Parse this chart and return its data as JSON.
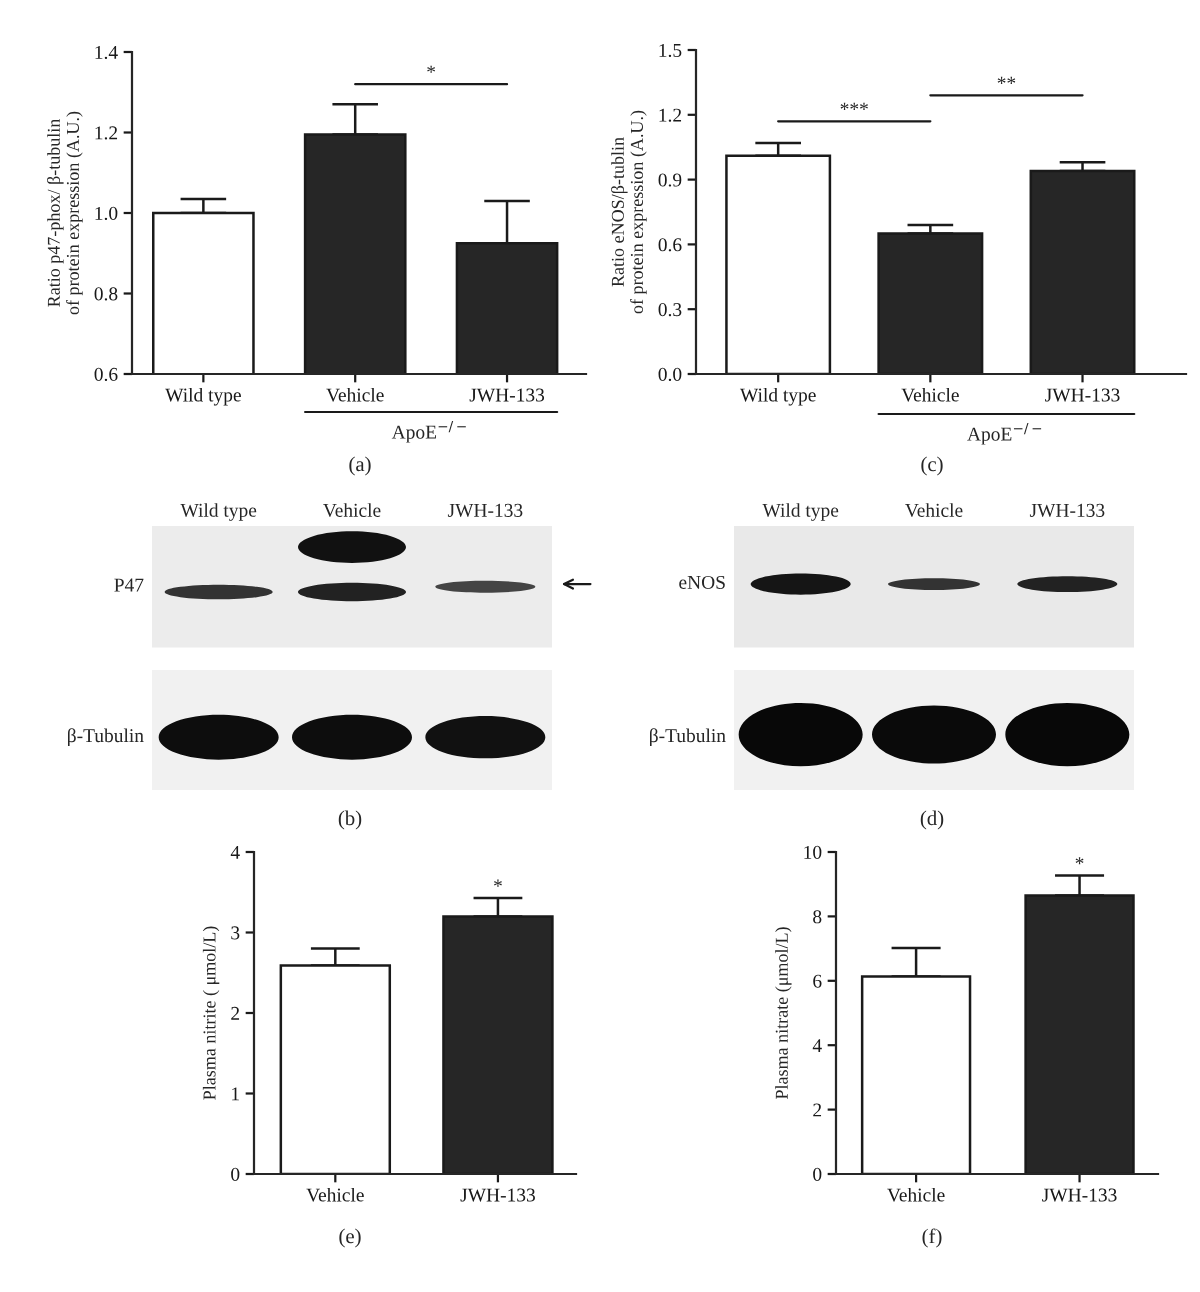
{
  "chart_data": [
    {
      "type": "bar",
      "categories": [
        "Wild type",
        "Vehicle",
        "JWH-133"
      ],
      "values": [
        1.0,
        1.195,
        0.925
      ],
      "colors": [
        "#ffffff",
        "#262626",
        "#262626"
      ],
      "errors": [
        [
          1.0,
          1.035
        ],
        [
          1.195,
          1.27
        ],
        [
          0.925,
          1.03
        ]
      ],
      "ylabel": "Ratio p47-phox/ β-tubulin\nof protein expression (A.U.)",
      "ylim": [
        0.6,
        1.4
      ],
      "yticks": [
        0.6,
        0.8,
        {
          "value": 1,
          "label": "1.0"
        },
        1.2,
        1.4
      ],
      "annotations": [
        "*",
        "ApoE$^{−/−}$",
        "(a)"
      ]
    },
    {
      "type": "bar",
      "categories": [
        "Wild type",
        "Vehicle",
        "JWH-133"
      ],
      "values": [
        1.01,
        0.65,
        0.94
      ],
      "colors": [
        "#ffffff",
        "#262626",
        "#262626"
      ],
      "errors": [
        [
          1.01,
          1.07
        ],
        [
          0.65,
          0.69
        ],
        [
          0.94,
          0.98
        ]
      ],
      "ylabel": "Ratio eNOS/β-tublin\nof protein expression (A.U.)",
      "ylim": [
        0,
        1.5
      ],
      "yticks": [
        {
          "value": 0,
          "label": "0.0"
        },
        0.3,
        0.6,
        0.9,
        1.2,
        1.5
      ],
      "annotations": [
        "***",
        "**",
        "ApoE$^{−/−}$",
        "(c)"
      ]
    },
    {
      "type": "other",
      "categories": [
        "Wild type",
        "Vehicle",
        "JWH-133"
      ],
      "annotations": [
        "P47",
        "β-Tubulin",
        "(b)"
      ]
    },
    {
      "type": "other",
      "categories": [
        "Wild type",
        "Vehicle",
        "JWH-133"
      ],
      "annotations": [
        "eNOS",
        "β-Tubulin",
        "(d)"
      ]
    },
    {
      "type": "bar",
      "categories": [
        "Vehicle",
        "JWH-133"
      ],
      "values": [
        2.59,
        3.2
      ],
      "colors": [
        "#ffffff",
        "#262626"
      ],
      "errors": [
        [
          2.59,
          2.8
        ],
        [
          3.2,
          3.43
        ]
      ],
      "ylabel": "Plasma nitrite ( μmol/L)",
      "ylim": [
        0,
        4
      ],
      "yticks": [
        0,
        1,
        2,
        3,
        4
      ],
      "annotations": [
        {
          "text": "*",
          "x": "JWH-133",
          "y": 3.43
        },
        "(e)"
      ]
    },
    {
      "type": "bar",
      "categories": [
        "Vehicle",
        "JWH-133"
      ],
      "values": [
        6.13,
        8.65
      ],
      "colors": [
        "#ffffff",
        "#262626"
      ],
      "errors": [
        [
          6.13,
          7.02
        ],
        [
          8.65,
          9.27
        ]
      ],
      "ylabel": "Plasma nitrate (μmol/L)",
      "ylim": [
        0,
        10
      ],
      "yticks": [
        0,
        2,
        4,
        6,
        8,
        10
      ],
      "annotations": [
        {
          "text": "*",
          "x": "JWH-133",
          "y": 9.27
        },
        "(f)"
      ]
    }
  ]
}
